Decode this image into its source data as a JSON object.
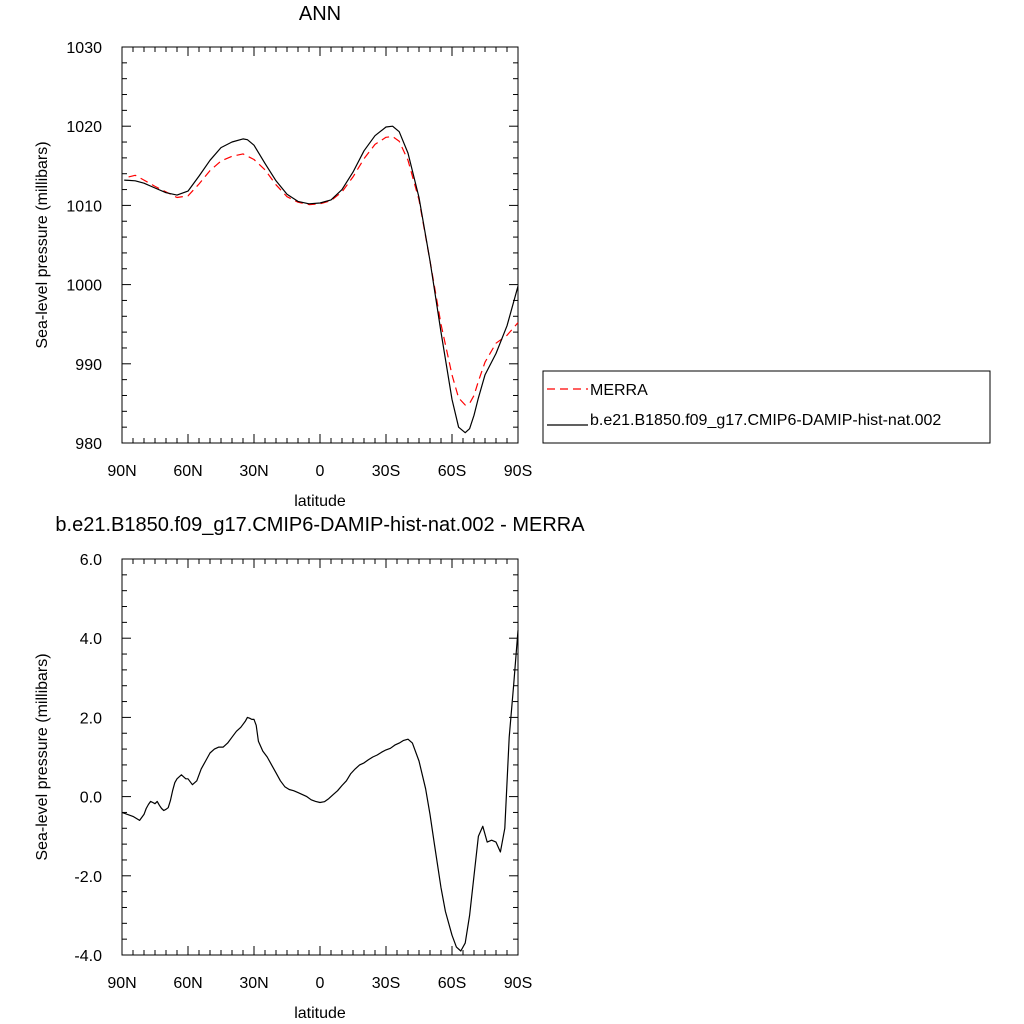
{
  "chart_data": [
    {
      "type": "line",
      "title": "ANN",
      "xlabel": "latitude",
      "ylabel": "Sea-level pressure (millibars)",
      "xlim": [
        90,
        -90
      ],
      "ylim": [
        980,
        1030
      ],
      "x_ticks": [
        90,
        60,
        30,
        0,
        -30,
        -60,
        -90
      ],
      "x_tick_labels": [
        "90N",
        "60N",
        "30N",
        "0",
        "30S",
        "60S",
        "90S"
      ],
      "y_ticks": [
        980,
        990,
        1000,
        1010,
        1020,
        1030
      ],
      "y_tick_labels": [
        "980",
        "990",
        "1000",
        "1010",
        "1020",
        "1030"
      ],
      "grid": false,
      "legend_position": "right",
      "series": [
        {
          "name": "MERRA",
          "color": "#ff0000",
          "dash": "dashed",
          "x": [
            87,
            84,
            80,
            75,
            70,
            65,
            60,
            55,
            50,
            45,
            40,
            35,
            30,
            25,
            20,
            15,
            10,
            5,
            0,
            -5,
            -10,
            -15,
            -20,
            -25,
            -30,
            -33,
            -36,
            -40,
            -45,
            -50,
            -55,
            -60,
            -63,
            -66,
            -68,
            -70,
            -72,
            -75,
            -80,
            -85,
            -90
          ],
          "y": [
            1013.6,
            1013.8,
            1013.2,
            1012.4,
            1011.7,
            1011.0,
            1011.2,
            1012.7,
            1014.4,
            1015.6,
            1016.2,
            1016.5,
            1015.8,
            1014.5,
            1012.6,
            1011.1,
            1010.4,
            1010.1,
            1010.2,
            1010.6,
            1011.7,
            1013.6,
            1015.9,
            1017.7,
            1018.6,
            1018.7,
            1018.1,
            1015.7,
            1010.7,
            1003.0,
            995.0,
            988.6,
            985.7,
            984.8,
            985.0,
            986.0,
            987.8,
            990.2,
            992.6,
            993.6,
            995.2
          ]
        },
        {
          "name": "b.e21.B1850.f09_g17.CMIP6-DAMIP-hist-nat.002",
          "color": "#000000",
          "dash": "solid",
          "x": [
            89,
            84,
            80,
            75,
            70,
            65,
            60,
            55,
            50,
            45,
            40,
            35,
            33,
            30,
            25,
            20,
            15,
            10,
            5,
            0,
            -5,
            -10,
            -15,
            -20,
            -25,
            -30,
            -33,
            -36,
            -40,
            -45,
            -50,
            -55,
            -60,
            -63,
            -66,
            -68,
            -70,
            -72,
            -75,
            -80,
            -85,
            -90
          ],
          "y": [
            1013.2,
            1013.1,
            1012.8,
            1012.2,
            1011.6,
            1011.3,
            1011.8,
            1013.7,
            1015.7,
            1017.3,
            1018.0,
            1018.4,
            1018.3,
            1017.6,
            1015.3,
            1013.1,
            1011.4,
            1010.5,
            1010.2,
            1010.3,
            1010.7,
            1012.0,
            1014.2,
            1016.9,
            1018.8,
            1019.9,
            1020.0,
            1019.3,
            1016.6,
            1011.0,
            1003.0,
            994.0,
            985.5,
            982.0,
            981.3,
            981.8,
            983.5,
            985.7,
            988.6,
            991.3,
            994.8,
            999.8
          ]
        }
      ]
    },
    {
      "type": "line",
      "title": "b.e21.B1850.f09_g17.CMIP6-DAMIP-hist-nat.002 - MERRA",
      "xlabel": "latitude",
      "ylabel": "Sea-level pressure (millibars)",
      "xlim": [
        90,
        -90
      ],
      "ylim": [
        -4.0,
        6.0
      ],
      "x_ticks": [
        90,
        60,
        30,
        0,
        -30,
        -60,
        -90
      ],
      "x_tick_labels": [
        "90N",
        "60N",
        "30N",
        "0",
        "30S",
        "60S",
        "90S"
      ],
      "y_ticks": [
        -4,
        -2,
        0,
        2,
        4,
        6
      ],
      "y_tick_labels": [
        "-4.0",
        "-2.0",
        "0.0",
        "2.0",
        "4.0",
        "6.0"
      ],
      "grid": false,
      "series": [
        {
          "color": "#000000",
          "dash": "solid",
          "x": [
            90,
            85,
            82,
            80,
            79,
            78,
            77,
            76,
            75,
            74,
            73,
            72,
            71,
            70,
            69,
            68,
            67,
            66,
            65,
            64,
            63,
            62,
            61,
            60,
            58,
            56,
            54,
            52,
            50,
            48,
            46,
            44,
            42,
            40,
            38,
            36,
            34,
            33,
            32,
            31,
            30,
            29,
            28,
            26,
            24,
            22,
            20,
            18,
            16,
            14,
            12,
            10,
            8,
            6,
            4,
            2,
            0,
            -2,
            -4,
            -6,
            -8,
            -10,
            -12,
            -14,
            -16,
            -18,
            -20,
            -22,
            -24,
            -26,
            -28,
            -30,
            -32,
            -34,
            -36,
            -38,
            -40,
            -42,
            -45,
            -48,
            -50,
            -52,
            -55,
            -57,
            -60,
            -62,
            -64,
            -66,
            -68,
            -70,
            -72,
            -74,
            -76,
            -78,
            -80,
            -82,
            -84,
            -86,
            -88,
            -90
          ],
          "y": [
            -0.4,
            -0.5,
            -0.6,
            -0.45,
            -0.3,
            -0.2,
            -0.12,
            -0.15,
            -0.18,
            -0.12,
            -0.22,
            -0.3,
            -0.35,
            -0.32,
            -0.28,
            -0.1,
            0.15,
            0.35,
            0.45,
            0.5,
            0.55,
            0.5,
            0.45,
            0.45,
            0.3,
            0.4,
            0.7,
            0.9,
            1.1,
            1.2,
            1.25,
            1.25,
            1.35,
            1.5,
            1.65,
            1.75,
            1.9,
            2.0,
            1.98,
            1.95,
            1.95,
            1.8,
            1.4,
            1.15,
            1.0,
            0.8,
            0.6,
            0.4,
            0.25,
            0.18,
            0.15,
            0.1,
            0.05,
            0.0,
            -0.08,
            -0.12,
            -0.15,
            -0.13,
            -0.05,
            0.05,
            0.15,
            0.28,
            0.4,
            0.58,
            0.7,
            0.8,
            0.85,
            0.93,
            1.0,
            1.05,
            1.12,
            1.18,
            1.22,
            1.3,
            1.35,
            1.42,
            1.45,
            1.35,
            0.9,
            0.2,
            -0.45,
            -1.2,
            -2.3,
            -2.9,
            -3.5,
            -3.8,
            -3.9,
            -3.7,
            -3.0,
            -2.0,
            -1.0,
            -0.75,
            -1.15,
            -1.1,
            -1.15,
            -1.4,
            -0.8,
            1.5,
            2.8,
            4.2
          ]
        }
      ]
    }
  ]
}
